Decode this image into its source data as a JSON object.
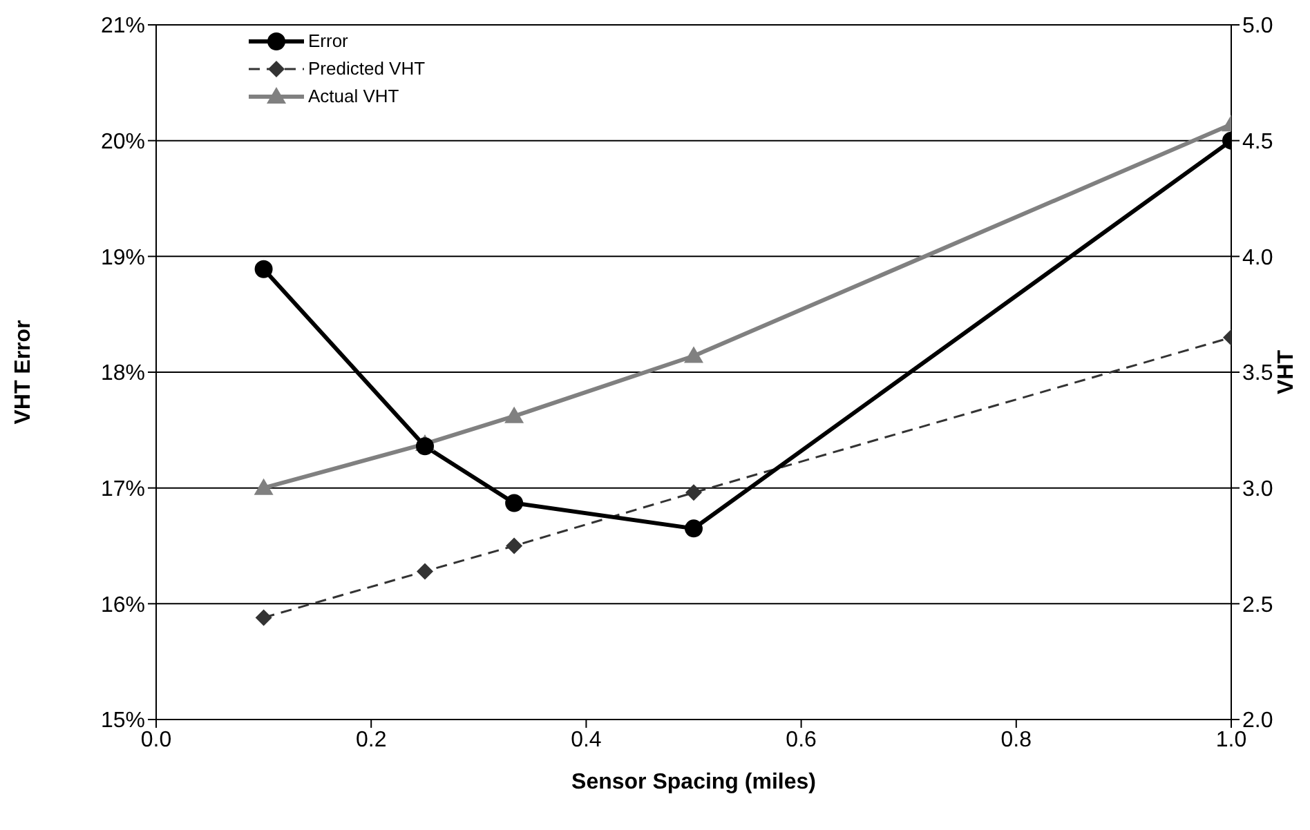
{
  "chart_data": {
    "type": "line",
    "xlabel": "Sensor Spacing (miles)",
    "ylabel": "VHT Error",
    "y2label": "VHT",
    "x": [
      0.1,
      0.25,
      0.333,
      0.5,
      1.0
    ],
    "series": [
      {
        "name": "Error",
        "color": "#000000",
        "values": [
          18.89,
          17.36,
          16.87,
          16.65,
          20.0
        ],
        "marker": "circle",
        "line_style": "solid"
      },
      {
        "name": "Predicted VHT",
        "color": "#333333",
        "values": [
          2.44,
          2.64,
          2.75,
          2.98,
          3.65
        ],
        "marker": "diamond",
        "line_style": "dashed",
        "axis": "y2"
      },
      {
        "name": "Actual VHT",
        "color": "#808080",
        "values": [
          3.0,
          3.19,
          3.31,
          3.57,
          4.57
        ],
        "marker": "triangle",
        "line_style": "solid",
        "axis": "y2"
      }
    ],
    "xlim": [
      0,
      1
    ],
    "xticks": [
      {
        "value": 0,
        "label": "0.0"
      },
      {
        "value": 0.2,
        "label": "0.2"
      },
      {
        "value": 0.4,
        "label": "0.4"
      },
      {
        "value": 0.6,
        "label": "0.6"
      },
      {
        "value": 0.8,
        "label": "0.8"
      },
      {
        "value": 1,
        "label": "1.0"
      }
    ],
    "ylim": [
      15,
      21
    ],
    "yticks": [
      {
        "value": 15,
        "label": "15%"
      },
      {
        "value": 16,
        "label": "16%"
      },
      {
        "value": 17,
        "label": "17%"
      },
      {
        "value": 18,
        "label": "18%"
      },
      {
        "value": 19,
        "label": "19%"
      },
      {
        "value": 20,
        "label": "20%"
      },
      {
        "value": 21,
        "label": "21%"
      }
    ],
    "y2lim": [
      2,
      5
    ],
    "y2ticks": [
      {
        "value": 2,
        "label": "2.0"
      },
      {
        "value": 2.5,
        "label": "2.5"
      },
      {
        "value": 3,
        "label": "3.0"
      },
      {
        "value": 3.5,
        "label": "3.5"
      },
      {
        "value": 4,
        "label": "4.0"
      },
      {
        "value": 4.5,
        "label": "4.5"
      },
      {
        "value": 5,
        "label": "5.0"
      }
    ],
    "grid": "y",
    "legend": "top left"
  }
}
